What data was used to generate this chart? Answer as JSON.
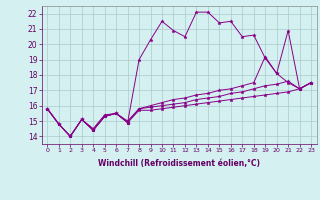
{
  "title": "",
  "xlabel": "Windchill (Refroidissement éolien,°C)",
  "bg_color": "#d4f0f0",
  "line_color": "#880088",
  "grid_color": "#aacccc",
  "xlim": [
    -0.5,
    23.5
  ],
  "ylim": [
    13.5,
    22.5
  ],
  "yticks": [
    14,
    15,
    16,
    17,
    18,
    19,
    20,
    21,
    22
  ],
  "xticks": [
    0,
    1,
    2,
    3,
    4,
    5,
    6,
    7,
    8,
    9,
    10,
    11,
    12,
    13,
    14,
    15,
    16,
    17,
    18,
    19,
    20,
    21,
    22,
    23
  ],
  "series": [
    {
      "x": [
        0,
        1,
        2,
        3,
        4,
        5,
        6,
        7,
        8,
        9,
        10,
        11,
        12,
        13,
        14,
        15,
        16,
        17,
        18,
        19,
        20,
        21,
        22,
        23
      ],
      "y": [
        15.8,
        14.8,
        14.0,
        15.1,
        14.5,
        15.4,
        15.5,
        14.9,
        19.0,
        20.3,
        21.5,
        20.9,
        20.5,
        22.1,
        22.1,
        21.4,
        21.5,
        20.5,
        20.6,
        19.1,
        18.1,
        20.9,
        17.1,
        17.5
      ]
    },
    {
      "x": [
        0,
        1,
        2,
        3,
        4,
        5,
        6,
        7,
        8,
        9,
        10,
        11,
        12,
        13,
        14,
        15,
        16,
        17,
        18,
        19,
        20,
        21,
        22,
        23
      ],
      "y": [
        15.8,
        14.8,
        14.0,
        15.1,
        14.4,
        15.3,
        15.5,
        15.0,
        15.8,
        16.0,
        16.2,
        16.4,
        16.5,
        16.7,
        16.8,
        17.0,
        17.1,
        17.3,
        17.5,
        19.2,
        18.1,
        17.5,
        17.1,
        17.5
      ]
    },
    {
      "x": [
        0,
        1,
        2,
        3,
        4,
        5,
        6,
        7,
        8,
        9,
        10,
        11,
        12,
        13,
        14,
        15,
        16,
        17,
        18,
        19,
        20,
        21,
        22,
        23
      ],
      "y": [
        15.8,
        14.8,
        14.0,
        15.1,
        14.4,
        15.3,
        15.5,
        14.9,
        15.8,
        15.9,
        16.0,
        16.1,
        16.2,
        16.4,
        16.5,
        16.6,
        16.8,
        16.9,
        17.1,
        17.3,
        17.4,
        17.6,
        17.1,
        17.5
      ]
    },
    {
      "x": [
        0,
        1,
        2,
        3,
        4,
        5,
        6,
        7,
        8,
        9,
        10,
        11,
        12,
        13,
        14,
        15,
        16,
        17,
        18,
        19,
        20,
        21,
        22,
        23
      ],
      "y": [
        15.8,
        14.8,
        14.0,
        15.1,
        14.4,
        15.3,
        15.5,
        14.9,
        15.7,
        15.7,
        15.8,
        15.9,
        16.0,
        16.1,
        16.2,
        16.3,
        16.4,
        16.5,
        16.6,
        16.7,
        16.8,
        16.9,
        17.1,
        17.5
      ]
    }
  ]
}
